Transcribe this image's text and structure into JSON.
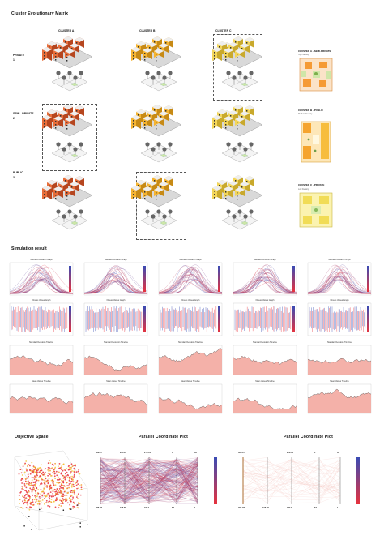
{
  "headings": {
    "matrix": "Cluster Evolutionary Matrix",
    "simulation": "Simulation result",
    "objective": "Objective Space",
    "pcp_left": "Parallel Coordinate Plot",
    "pcp_right": "Parallel Coordinate Plot"
  },
  "columns": {
    "a": "CLUSTER A",
    "b": "CLUSTER B",
    "c": "CLUSTER C"
  },
  "rows": {
    "private_label": "PRIVATE",
    "private_num": "1",
    "semi_label": "SEMI - PRIVATE",
    "semi_num": "2",
    "public_label": "PUBLIC",
    "public_num": "3"
  },
  "plans": [
    {
      "title": "CLUSTER A - SEMI-PRIVATE",
      "sub": "High density"
    },
    {
      "title": "CLUSTER B - PUBLIC",
      "sub": "Medium Density"
    },
    {
      "title": "CLUSTER C - PRIVATE",
      "sub": "Low Density"
    }
  ],
  "graph_titles": {
    "sd": "Standard Deviation Graph",
    "fit": "Fitness Values Graph",
    "sdt": "Standard Deviation Timeline",
    "mvt": "Mean Values Timeline"
  },
  "pcp_left_axis": {
    "top": [
      "328.07",
      "225.81",
      "276.41",
      "3",
      "65"
    ],
    "bottom": [
      "965.38",
      "715.55",
      "332.1",
      "53",
      "1"
    ]
  },
  "pcp_right_axis": {
    "top": [
      "328.07",
      "",
      "276.41",
      "1",
      "65"
    ],
    "bottom": [
      "965.38",
      "715.55",
      "332.1",
      "53",
      "1"
    ]
  },
  "colors": {
    "accent_orange": "#f08a24",
    "sim_red": "#e8323c",
    "sim_blue": "#3a4bb4",
    "salmon": "#f2a39a"
  }
}
